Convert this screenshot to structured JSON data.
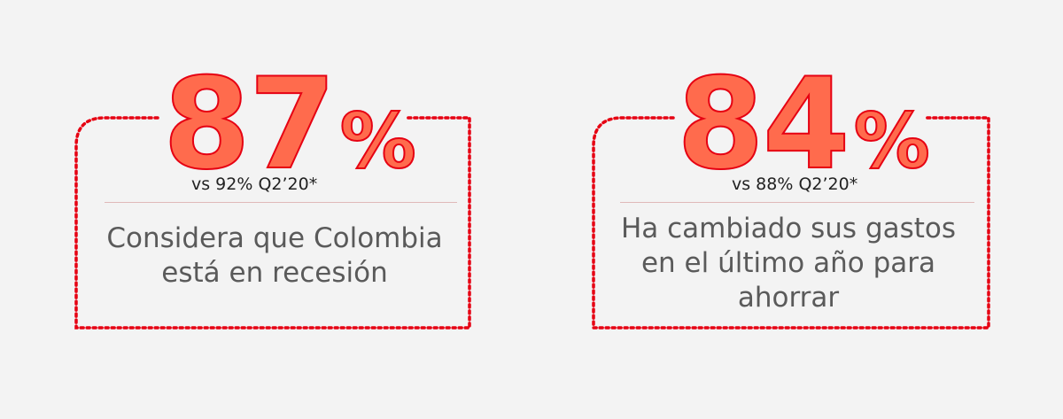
{
  "stats": [
    {
      "value": "87",
      "unit": "%",
      "comparison": "vs 92% Q2’20*",
      "description_lines": [
        "Considera que Colombia",
        "está en recesión"
      ]
    },
    {
      "value": "84",
      "unit": "%",
      "comparison": "vs 88% Q2’20*",
      "description_lines": [
        "Ha cambiado sus gastos",
        "en el último año para",
        "ahorrar"
      ]
    }
  ],
  "colors": {
    "accent_fill": "#ff6b4d",
    "accent_stroke": "#e60012",
    "text_gray": "#5a5a5a",
    "background": "#f3f3f3"
  }
}
